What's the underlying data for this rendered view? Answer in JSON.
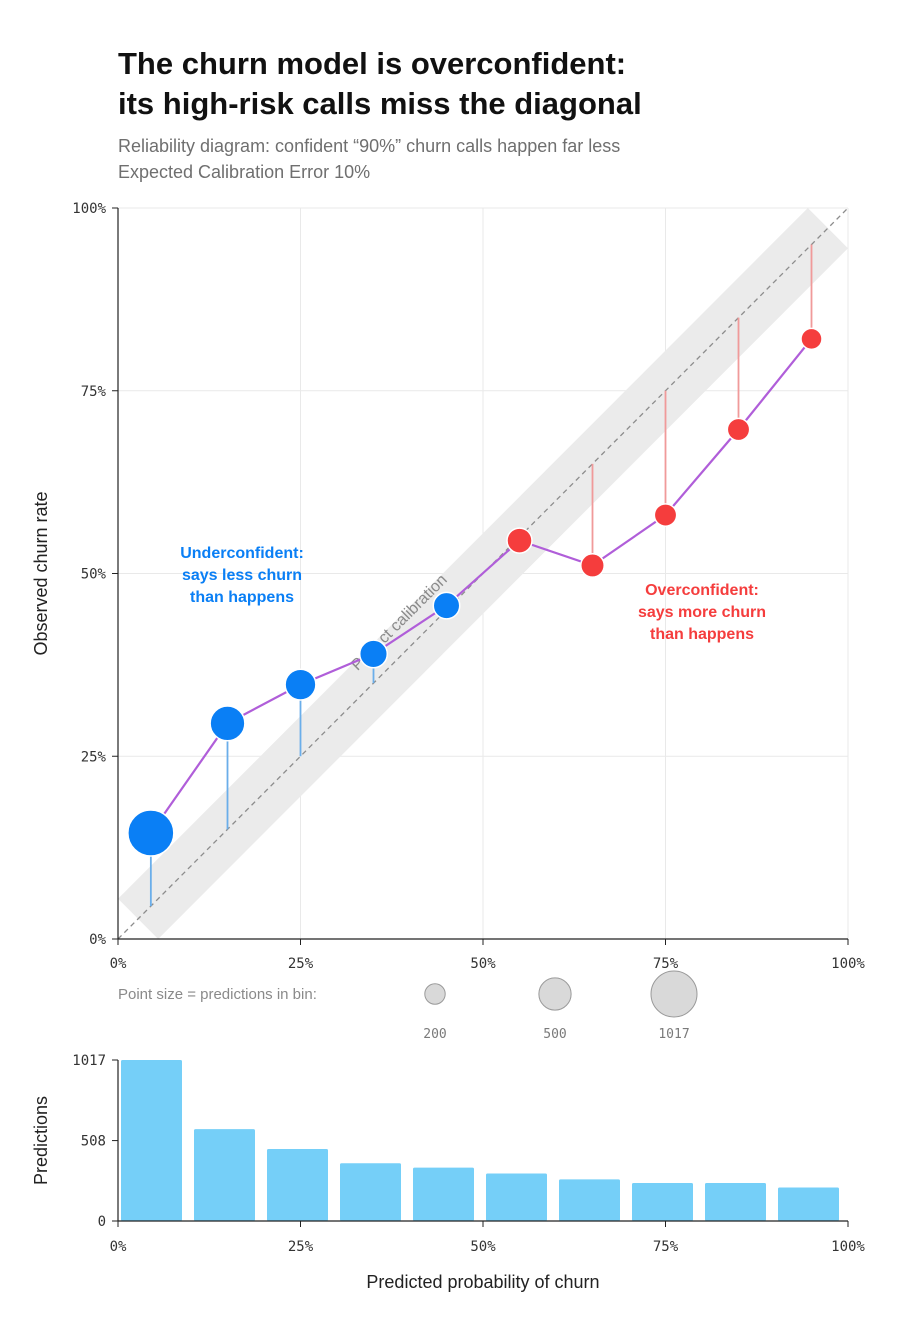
{
  "header": {
    "title_line1": "The churn model is overconfident:",
    "title_line2": "its high-risk calls miss the diagonal",
    "subtitle_line1": "Reliability diagram: confident “90%” churn calls happen far less",
    "subtitle_line2": "Expected Calibration Error 10%"
  },
  "colors": {
    "under": "#0a7ff5",
    "over": "#f53d3d",
    "line": "#b05ed9",
    "under_gap": "#6aaeea",
    "over_gap": "#f09a9a",
    "bar": "#75cff8",
    "band": "#ebebeb"
  },
  "chart_data": [
    {
      "type": "scatter",
      "title": "The churn model is overconfident: its high-risk calls miss the diagonal",
      "xlabel": "",
      "ylabel": "Observed churn rate",
      "xlim": [
        0,
        1
      ],
      "ylim": [
        0,
        1
      ],
      "xticks": [
        "0%",
        "25%",
        "50%",
        "75%",
        "100%"
      ],
      "yticks": [
        "0%",
        "25%",
        "50%",
        "75%",
        "100%"
      ],
      "grid": true,
      "points": [
        {
          "x": 0.045,
          "y": 0.145,
          "n": 1017,
          "group": "under"
        },
        {
          "x": 0.15,
          "y": 0.295,
          "n": 580,
          "group": "under"
        },
        {
          "x": 0.25,
          "y": 0.348,
          "n": 455,
          "group": "under"
        },
        {
          "x": 0.35,
          "y": 0.39,
          "n": 365,
          "group": "under"
        },
        {
          "x": 0.45,
          "y": 0.456,
          "n": 337,
          "group": "under"
        },
        {
          "x": 0.55,
          "y": 0.545,
          "n": 300,
          "group": "over"
        },
        {
          "x": 0.65,
          "y": 0.511,
          "n": 263,
          "group": "over"
        },
        {
          "x": 0.75,
          "y": 0.58,
          "n": 240,
          "group": "over"
        },
        {
          "x": 0.85,
          "y": 0.697,
          "n": 240,
          "group": "over"
        },
        {
          "x": 0.95,
          "y": 0.821,
          "n": 212,
          "group": "over"
        }
      ],
      "diagonal_label": "Perfect calibration",
      "annotations": {
        "under": [
          "Underconfident:",
          "says less churn",
          "than happens"
        ],
        "over": [
          "Overconfident:",
          "says more churn",
          "than happens"
        ]
      },
      "size_legend": {
        "label": "Point size = predictions in bin:",
        "values": [
          200,
          500,
          1017
        ],
        "value_labels": [
          "200",
          "500",
          "1017"
        ]
      }
    },
    {
      "type": "bar",
      "xlabel": "Predicted probability of churn",
      "ylabel": "Predictions",
      "xlim": [
        0,
        1
      ],
      "ylim": [
        0,
        1017
      ],
      "xticks": [
        "0%",
        "25%",
        "50%",
        "75%",
        "100%"
      ],
      "yticks": [
        "0",
        "508",
        "1017"
      ],
      "bins": [
        {
          "from": 0.0,
          "to": 0.1,
          "value": 1017
        },
        {
          "from": 0.1,
          "to": 0.2,
          "value": 580
        },
        {
          "from": 0.2,
          "to": 0.3,
          "value": 455
        },
        {
          "from": 0.3,
          "to": 0.4,
          "value": 365
        },
        {
          "from": 0.4,
          "to": 0.5,
          "value": 337
        },
        {
          "from": 0.5,
          "to": 0.6,
          "value": 300
        },
        {
          "from": 0.6,
          "to": 0.7,
          "value": 263
        },
        {
          "from": 0.7,
          "to": 0.8,
          "value": 240
        },
        {
          "from": 0.8,
          "to": 0.9,
          "value": 240
        },
        {
          "from": 0.9,
          "to": 1.0,
          "value": 212
        }
      ]
    }
  ]
}
